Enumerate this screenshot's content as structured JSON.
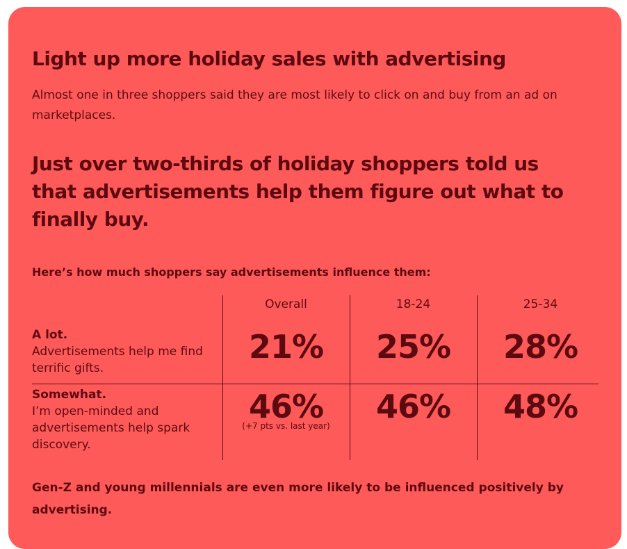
{
  "header": {
    "title": "Light up more holiday sales with advertising",
    "subtitle": "Almost one in three shoppers said they are most likely to click on and buy from an ad on marketplaces."
  },
  "headline": "Just over two-thirds of holiday shoppers told us that advertisements help them figure out what to finally buy.",
  "table": {
    "caption": "Here’s how much shoppers say advertisements influence them:",
    "columns": [
      "Overall",
      "18-24",
      "25-34"
    ],
    "rows": [
      {
        "label": "A lot.",
        "description": "Advertisements help me find terrific gifts.",
        "cells": [
          "21%",
          "25%",
          "28%"
        ]
      },
      {
        "label": "Somewhat.",
        "description": "I’m open-minded and advertisements help spark discovery.",
        "cells": [
          "46%",
          "46%",
          "48%"
        ],
        "note": "(+7 pts vs. last year)"
      }
    ]
  },
  "footer": "Gen-Z and young millennials are even more likely to be influenced positively by advertising."
}
